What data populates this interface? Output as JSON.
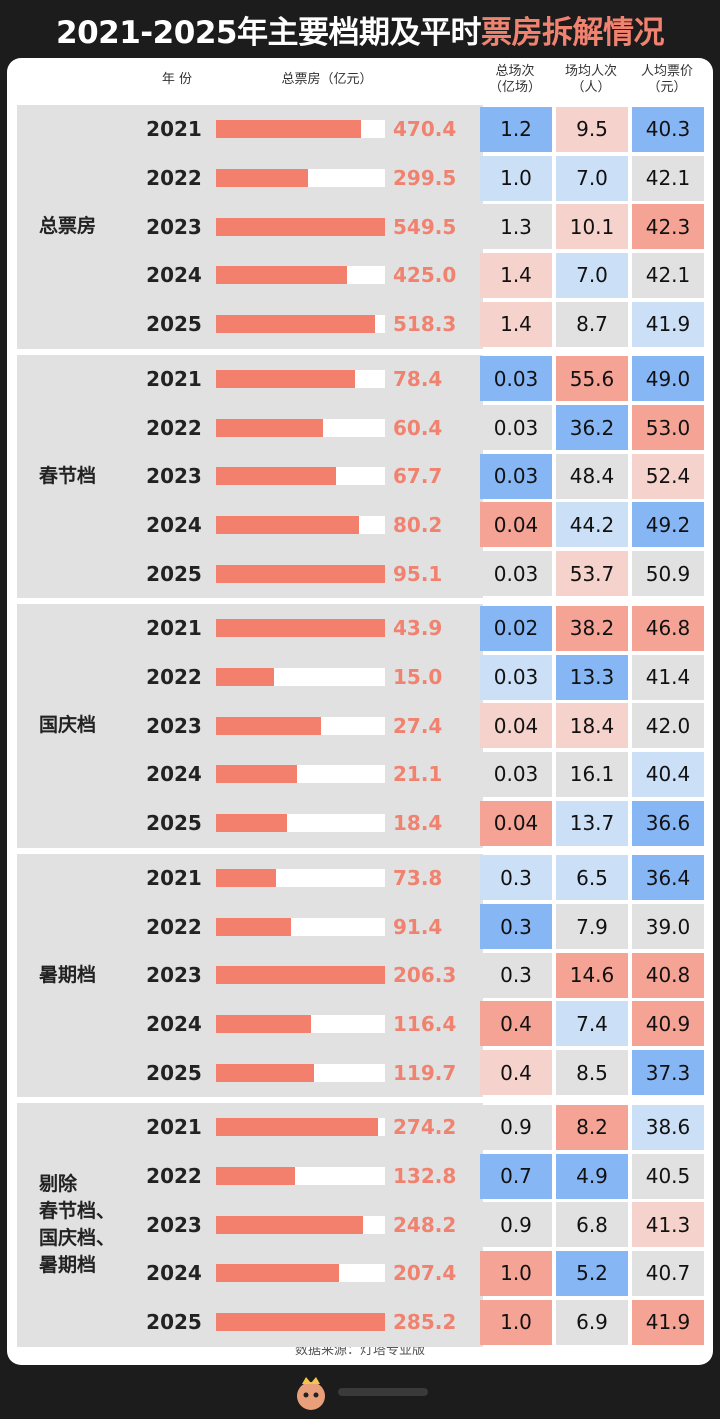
{
  "title": {
    "main": "2021-2025年主要档期及平时",
    "highlight": "票房拆解情况"
  },
  "headers": {
    "year": "年 份",
    "box_office": "总票房（亿元）",
    "screenings": [
      "总场次",
      "（亿场）"
    ],
    "per_screening": [
      "场均人次",
      "（人）"
    ],
    "avg_price": [
      "人均票价",
      "（元）"
    ]
  },
  "source": "数据来源：灯塔专业版",
  "colors": {
    "bar": "#f2806d",
    "value_text": "#f0826f",
    "group_bg": "#e1e1e1",
    "blue_dark": "#87b6f5",
    "blue_light": "#cbdff6",
    "neutral": "#e1e1e1",
    "red_light": "#f5d2cc",
    "red_dark": "#f4a395"
  },
  "chart_data": {
    "type": "table",
    "years": [
      "2021",
      "2022",
      "2023",
      "2024",
      "2025"
    ],
    "groups": [
      {
        "name": [
          "总票房"
        ],
        "box_office": [
          "470.4",
          "299.5",
          "549.5",
          "425.0",
          "518.3"
        ],
        "screenings": [
          "1.2",
          "1.0",
          "1.3",
          "1.4",
          "1.4"
        ],
        "per_screening": [
          "9.5",
          "7.0",
          "10.1",
          "7.0",
          "8.7"
        ],
        "avg_price": [
          "40.3",
          "42.1",
          "42.3",
          "42.1",
          "41.9"
        ]
      },
      {
        "name": [
          "春节档"
        ],
        "box_office": [
          "78.4",
          "60.4",
          "67.7",
          "80.2",
          "95.1"
        ],
        "screenings": [
          "0.03",
          "0.03",
          "0.03",
          "0.04",
          "0.03"
        ],
        "per_screening": [
          "55.6",
          "36.2",
          "48.4",
          "44.2",
          "53.7"
        ],
        "avg_price": [
          "49.0",
          "53.0",
          "52.4",
          "49.2",
          "50.9"
        ]
      },
      {
        "name": [
          "国庆档"
        ],
        "box_office": [
          "43.9",
          "15.0",
          "27.4",
          "21.1",
          "18.4"
        ],
        "screenings": [
          "0.02",
          "0.03",
          "0.04",
          "0.03",
          "0.04"
        ],
        "per_screening": [
          "38.2",
          "13.3",
          "18.4",
          "16.1",
          "13.7"
        ],
        "avg_price": [
          "46.8",
          "41.4",
          "42.0",
          "40.4",
          "36.6"
        ]
      },
      {
        "name": [
          "暑期档"
        ],
        "box_office": [
          "73.8",
          "91.4",
          "206.3",
          "116.4",
          "119.7"
        ],
        "screenings": [
          "0.3",
          "0.3",
          "0.3",
          "0.4",
          "0.4"
        ],
        "per_screening": [
          "6.5",
          "7.9",
          "14.6",
          "7.4",
          "8.5"
        ],
        "avg_price": [
          "36.4",
          "39.0",
          "40.8",
          "40.9",
          "37.3"
        ]
      },
      {
        "name": [
          "剔除",
          "春节档、",
          "国庆档、",
          "暑期档"
        ],
        "box_office": [
          "274.2",
          "132.8",
          "248.2",
          "207.4",
          "285.2"
        ],
        "screenings": [
          "0.9",
          "0.7",
          "0.9",
          "1.0",
          "1.0"
        ],
        "per_screening": [
          "8.2",
          "4.9",
          "6.8",
          "5.2",
          "6.9"
        ],
        "avg_price": [
          "38.6",
          "40.5",
          "41.3",
          "40.7",
          "41.9"
        ]
      }
    ],
    "cell_shades": [
      [
        [
          "b2",
          "b1",
          "n",
          "r1",
          "r1"
        ],
        [
          "r1",
          "b1",
          "r1",
          "b1",
          "n"
        ],
        [
          "b2",
          "n",
          "r2",
          "n",
          "b1"
        ]
      ],
      [
        [
          "b2",
          "n",
          "b2",
          "r2",
          "n"
        ],
        [
          "r2",
          "b2",
          "n",
          "b1",
          "r1"
        ],
        [
          "b2",
          "r2",
          "r1",
          "b2",
          "n"
        ]
      ],
      [
        [
          "b2",
          "b1",
          "r1",
          "n",
          "r2"
        ],
        [
          "r2",
          "b2",
          "r1",
          "n",
          "b1"
        ],
        [
          "r2",
          "n",
          "n",
          "b1",
          "b2"
        ]
      ],
      [
        [
          "b1",
          "b2",
          "n",
          "r2",
          "r1"
        ],
        [
          "b1",
          "n",
          "r2",
          "b1",
          "n"
        ],
        [
          "b2",
          "n",
          "r2",
          "r2",
          "b2"
        ]
      ],
      [
        [
          "n",
          "b2",
          "n",
          "r2",
          "r2"
        ],
        [
          "r2",
          "b2",
          "n",
          "b2",
          "n"
        ],
        [
          "b1",
          "n",
          "r1",
          "n",
          "r2"
        ]
      ]
    ]
  }
}
